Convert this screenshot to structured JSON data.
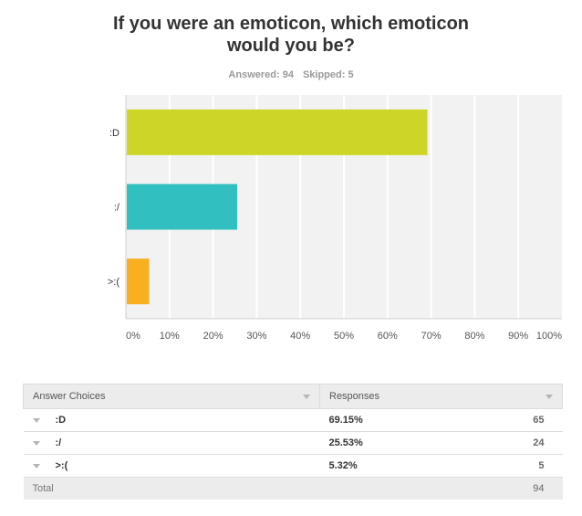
{
  "title_lines": [
    "If you were an emoticon, which emoticon",
    "would you be?"
  ],
  "stats": {
    "answered": "Answered: 94",
    "skipped": "Skipped: 5"
  },
  "chart_data": {
    "type": "bar",
    "orientation": "horizontal",
    "categories": [
      ":D",
      ":/",
      ">:("
    ],
    "values": [
      69.15,
      25.53,
      5.32
    ],
    "colors": [
      "#cdd627",
      "#31bfbf",
      "#f8b021"
    ],
    "xlim": [
      0,
      100
    ],
    "xticks": [
      "0%",
      "10%",
      "20%",
      "30%",
      "40%",
      "50%",
      "60%",
      "70%",
      "80%",
      "90%",
      "100%"
    ],
    "grid": true,
    "plot_background": "#f2f2f2",
    "grid_color": "#ffffff"
  },
  "table": {
    "headers": {
      "choices": "Answer Choices",
      "responses": "Responses"
    },
    "rows": [
      {
        "choice": ":D",
        "percent": "69.15%",
        "count": "65"
      },
      {
        "choice": ":/",
        "percent": "25.53%",
        "count": "24"
      },
      {
        "choice": ">:(",
        "percent": "5.32%",
        "count": "5"
      }
    ],
    "total": {
      "label": "Total",
      "count": "94"
    }
  }
}
